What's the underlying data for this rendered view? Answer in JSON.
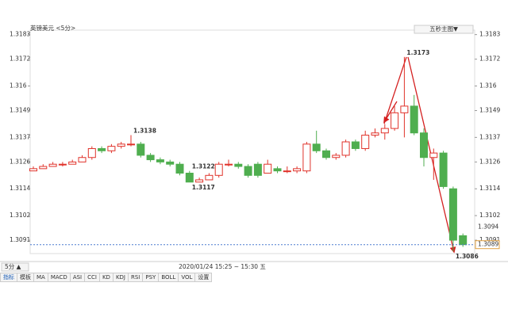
{
  "chart_data": {
    "type": "candlestick",
    "title": "英镑美元 <5分>",
    "main_menu": "五秒主图▼",
    "time_range": "2020/01/24 15:25 ~ 15:30 五",
    "period": "5分 ▲",
    "tabs": [
      "指标",
      "模板",
      "MA",
      "MACD",
      "ASI",
      "CCI",
      "KD",
      "KDJ",
      "RSI",
      "PSY",
      "BOLL",
      "VOL",
      "设置"
    ],
    "up_color": "#e0332b",
    "down_color": "#4fae4f",
    "open": [
      1.3122,
      1.3123,
      1.3124,
      1.3125,
      1.3125,
      1.3126,
      1.3128,
      1.3132,
      1.3131,
      1.3133,
      1.3134,
      1.3134,
      1.3129,
      1.3127,
      1.3126,
      1.3125,
      1.3121,
      1.3117,
      1.3118,
      1.312,
      1.3125,
      1.3125,
      1.3124,
      1.3125,
      1.3121,
      1.3123,
      1.3122,
      1.3122,
      1.3122,
      1.3134,
      1.3131,
      1.3128,
      1.3129,
      1.3135,
      1.3132,
      1.3138,
      1.3139,
      1.3141,
      1.3148,
      1.3151,
      1.3139,
      1.3128,
      1.313,
      1.3114,
      1.3093
    ],
    "high": [
      1.3124,
      1.3125,
      1.3126,
      1.3126,
      1.3127,
      1.3129,
      1.3133,
      1.3133,
      1.3134,
      1.3135,
      1.3138,
      1.3135,
      1.313,
      1.3128,
      1.3127,
      1.3126,
      1.3122,
      1.3119,
      1.3121,
      1.3126,
      1.3127,
      1.3126,
      1.3125,
      1.3126,
      1.3127,
      1.3124,
      1.3124,
      1.3124,
      1.3135,
      1.314,
      1.3132,
      1.313,
      1.3136,
      1.3136,
      1.314,
      1.3141,
      1.3143,
      1.3151,
      1.3173,
      1.3156,
      1.3141,
      1.3132,
      1.3131,
      1.3115,
      1.3094
    ],
    "low": [
      1.3122,
      1.3123,
      1.3124,
      1.3124,
      1.3125,
      1.3126,
      1.3127,
      1.313,
      1.313,
      1.3132,
      1.3133,
      1.3128,
      1.3126,
      1.3125,
      1.3124,
      1.312,
      1.3117,
      1.3117,
      1.3118,
      1.3119,
      1.3124,
      1.3123,
      1.3119,
      1.3119,
      1.3121,
      1.3121,
      1.3121,
      1.3121,
      1.3121,
      1.313,
      1.3127,
      1.3127,
      1.3128,
      1.3131,
      1.3131,
      1.3137,
      1.3136,
      1.314,
      1.3137,
      1.3138,
      1.3124,
      1.3118,
      1.3114,
      1.3086,
      1.3088
    ],
    "close": [
      1.3123,
      1.3124,
      1.3125,
      1.3125,
      1.3126,
      1.3128,
      1.3132,
      1.3131,
      1.3133,
      1.3134,
      1.3134,
      1.3129,
      1.3127,
      1.3126,
      1.3125,
      1.3121,
      1.3117,
      1.3118,
      1.312,
      1.3125,
      1.3125,
      1.3124,
      1.312,
      1.312,
      1.3125,
      1.3122,
      1.3122,
      1.3123,
      1.3134,
      1.3131,
      1.3128,
      1.3129,
      1.3135,
      1.3132,
      1.3138,
      1.3139,
      1.3141,
      1.3148,
      1.3151,
      1.3139,
      1.3128,
      1.313,
      1.3115,
      1.3091,
      1.3089
    ],
    "extreme_labels": [
      1.3122,
      1.3138,
      1.3117,
      1.3173,
      1.3086
    ],
    "price_tags": [
      1.3094,
      1.3089
    ],
    "ylim": [
      1.3085,
      1.3185
    ],
    "yticks": [
      1.3091,
      1.3102,
      1.3114,
      1.3126,
      1.3137,
      1.3149,
      1.316,
      1.3172,
      1.3183
    ]
  }
}
